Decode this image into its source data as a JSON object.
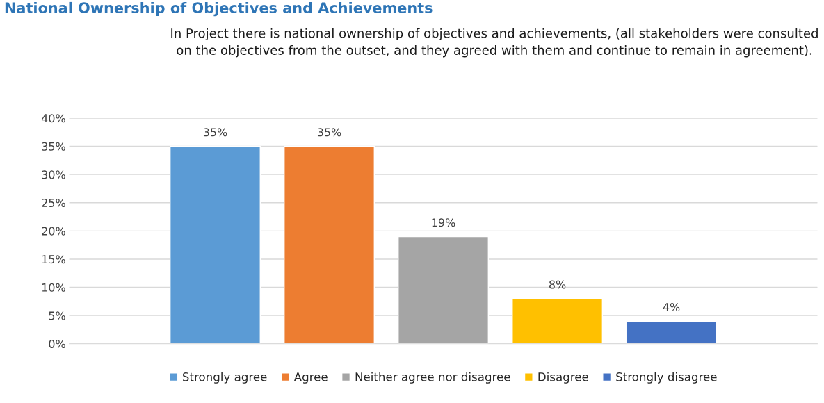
{
  "chart_data": {
    "type": "bar",
    "title": "National Ownership of Objectives and Achievements",
    "subtitle": "In Project there is national ownership of objectives and achievements, (all stakeholders were consulted on the objectives from the outset, and they agreed with them and continue to remain in agreement).",
    "categories": [
      null,
      null,
      null,
      null,
      null
    ],
    "series": [
      {
        "name": "Strongly agree",
        "color": "#5b9bd5",
        "values": [
          35,
          null,
          null,
          null,
          null
        ],
        "value_labels": [
          "35%",
          null,
          null,
          null,
          null
        ]
      },
      {
        "name": "Agree",
        "color": "#ed7d31",
        "values": [
          null,
          35,
          null,
          null,
          null
        ],
        "value_labels": [
          null,
          "35%",
          null,
          null,
          null
        ]
      },
      {
        "name": "Neither agree nor disagree",
        "color": "#a5a5a5",
        "values": [
          null,
          null,
          19,
          null,
          null
        ],
        "value_labels": [
          null,
          null,
          "19%",
          null,
          null
        ]
      },
      {
        "name": "Disagree",
        "color": "#ffc000",
        "values": [
          null,
          null,
          null,
          8,
          null
        ],
        "value_labels": [
          null,
          null,
          null,
          "8%",
          null
        ]
      },
      {
        "name": "Strongly disagree",
        "color": "#4472c4",
        "values": [
          null,
          null,
          null,
          null,
          4
        ],
        "value_labels": [
          null,
          null,
          null,
          null,
          "4%"
        ]
      }
    ],
    "ylim": [
      0,
      40
    ],
    "yticks": [
      {
        "value": 0,
        "label": "0%"
      },
      {
        "value": 5,
        "label": "5%"
      },
      {
        "value": 10,
        "label": "10%"
      },
      {
        "value": 15,
        "label": "15%"
      },
      {
        "value": 20,
        "label": "20%"
      },
      {
        "value": 25,
        "label": "25%"
      },
      {
        "value": 30,
        "label": "30%"
      },
      {
        "value": 35,
        "label": "35%"
      },
      {
        "value": 40,
        "label": "40%"
      }
    ],
    "grid": "y",
    "legend": "bottom"
  }
}
